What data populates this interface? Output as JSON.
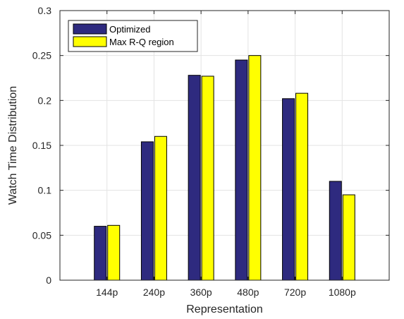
{
  "chart_data": {
    "type": "bar",
    "xlabel": "Representation",
    "ylabel": "Watch Time Distribution",
    "categories": [
      "144p",
      "240p",
      "360p",
      "480p",
      "720p",
      "1080p"
    ],
    "series": [
      {
        "name": "Optimized",
        "color": "#2e2a7f",
        "values": [
          0.06,
          0.154,
          0.228,
          0.245,
          0.202,
          0.11
        ]
      },
      {
        "name": "Max R-Q region",
        "color": "#ffff00",
        "values": [
          0.061,
          0.16,
          0.227,
          0.25,
          0.208,
          0.095
        ]
      }
    ],
    "ylim": [
      0,
      0.3
    ],
    "yticks": [
      0,
      0.05,
      0.1,
      0.15,
      0.2,
      0.25,
      0.3
    ],
    "ytick_labels": [
      "0",
      "0.05",
      "0.1",
      "0.15",
      "0.2",
      "0.25",
      "0.3"
    ],
    "grid": true,
    "legend_position": "top-left"
  }
}
